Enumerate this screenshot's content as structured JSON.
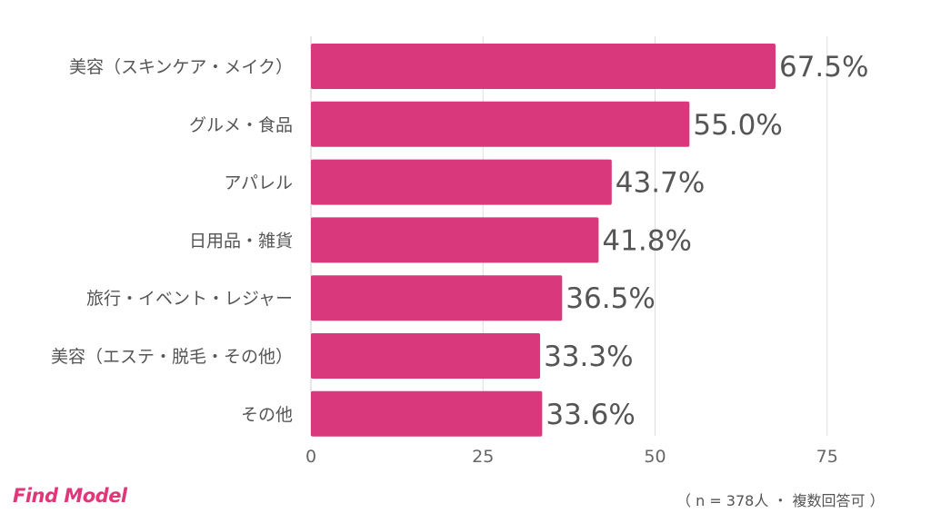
{
  "chart_data": {
    "type": "bar",
    "orientation": "horizontal",
    "categories": [
      "美容（スキンケア・メイク）",
      "グルメ・食品",
      "アパレル",
      "日用品・雑貨",
      "旅行・イベント・レジャー",
      "美容（エステ・脱毛・その他）",
      "その他"
    ],
    "values": [
      67.5,
      55.0,
      43.7,
      41.8,
      36.5,
      33.3,
      33.6
    ],
    "value_labels": [
      "67.5%",
      "55.0%",
      "43.7%",
      "41.8%",
      "36.5%",
      "33.3%",
      "33.6%"
    ],
    "xlim": [
      0,
      75
    ],
    "xticks": [
      0,
      25,
      50,
      75
    ],
    "grid": true,
    "bar_color": "#d9387c"
  },
  "logo": "Find Model",
  "footnote": "（ n = 378人 ・ 複数回答可 ）"
}
